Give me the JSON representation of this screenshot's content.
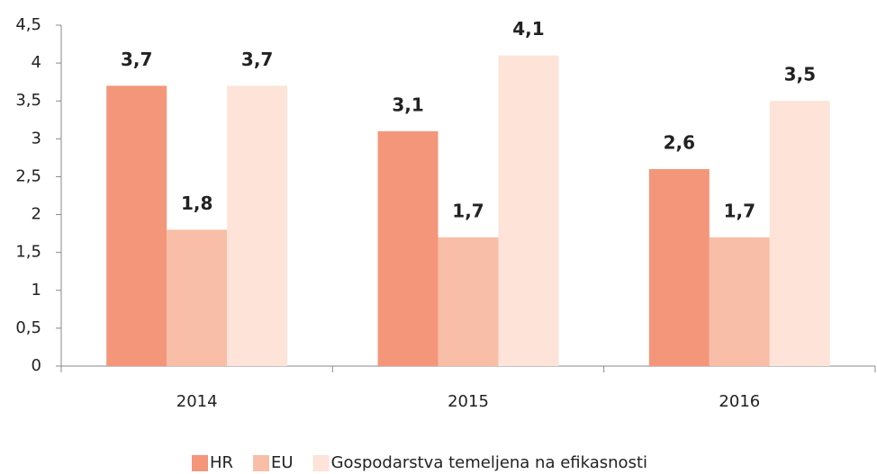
{
  "chart_data": {
    "type": "bar",
    "categories": [
      "2014",
      "2015",
      "2016"
    ],
    "series": [
      {
        "name": "HR",
        "color": "#f4967a",
        "values": [
          3.7,
          3.1,
          2.6
        ],
        "value_labels": [
          "3,7",
          "3,1",
          "2,6"
        ]
      },
      {
        "name": "EU",
        "color": "#f9bea8",
        "values": [
          1.8,
          1.7,
          1.7
        ],
        "value_labels": [
          "1,8",
          "1,7",
          "1,7"
        ]
      },
      {
        "name": "Gospodarstva temeljena na efikasnosti",
        "color": "#fde3d8",
        "values": [
          3.7,
          4.1,
          3.5
        ],
        "value_labels": [
          "3,7",
          "4,1",
          "3,5"
        ]
      }
    ],
    "ylim": [
      0,
      4.5
    ],
    "yticks": [
      0,
      {
        "value": 0.5,
        "label": "0,5"
      },
      1,
      {
        "value": 1.5,
        "label": "1,5"
      },
      2,
      {
        "value": 2.5,
        "label": "2,5"
      },
      3,
      {
        "value": 3.5,
        "label": "3,5"
      },
      4,
      {
        "value": 4.5,
        "label": "4,5"
      }
    ],
    "legend": "bottom"
  }
}
